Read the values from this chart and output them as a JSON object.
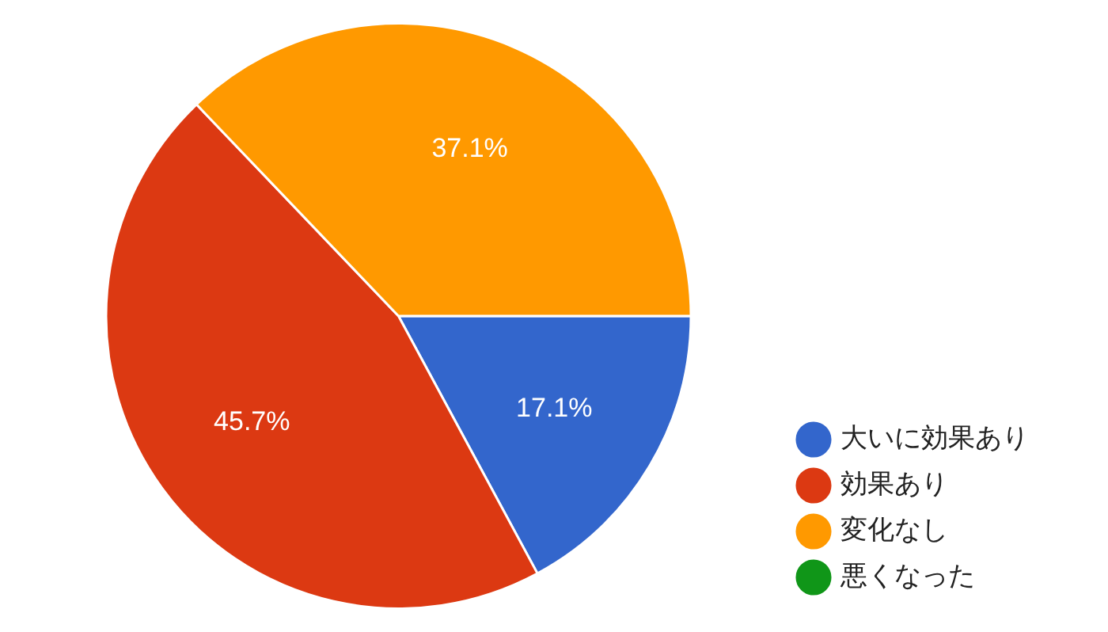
{
  "chart_data": {
    "type": "pie",
    "categories": [
      "大いに効果あり",
      "効果あり",
      "変化なし",
      "悪くなった"
    ],
    "values": [
      17.1,
      45.7,
      37.1,
      0
    ],
    "colors": [
      "#3366cc",
      "#dc3912",
      "#ff9900",
      "#109618"
    ],
    "value_labels": [
      "17.1%",
      "45.7%",
      "37.1%",
      null
    ],
    "legend": "right"
  }
}
